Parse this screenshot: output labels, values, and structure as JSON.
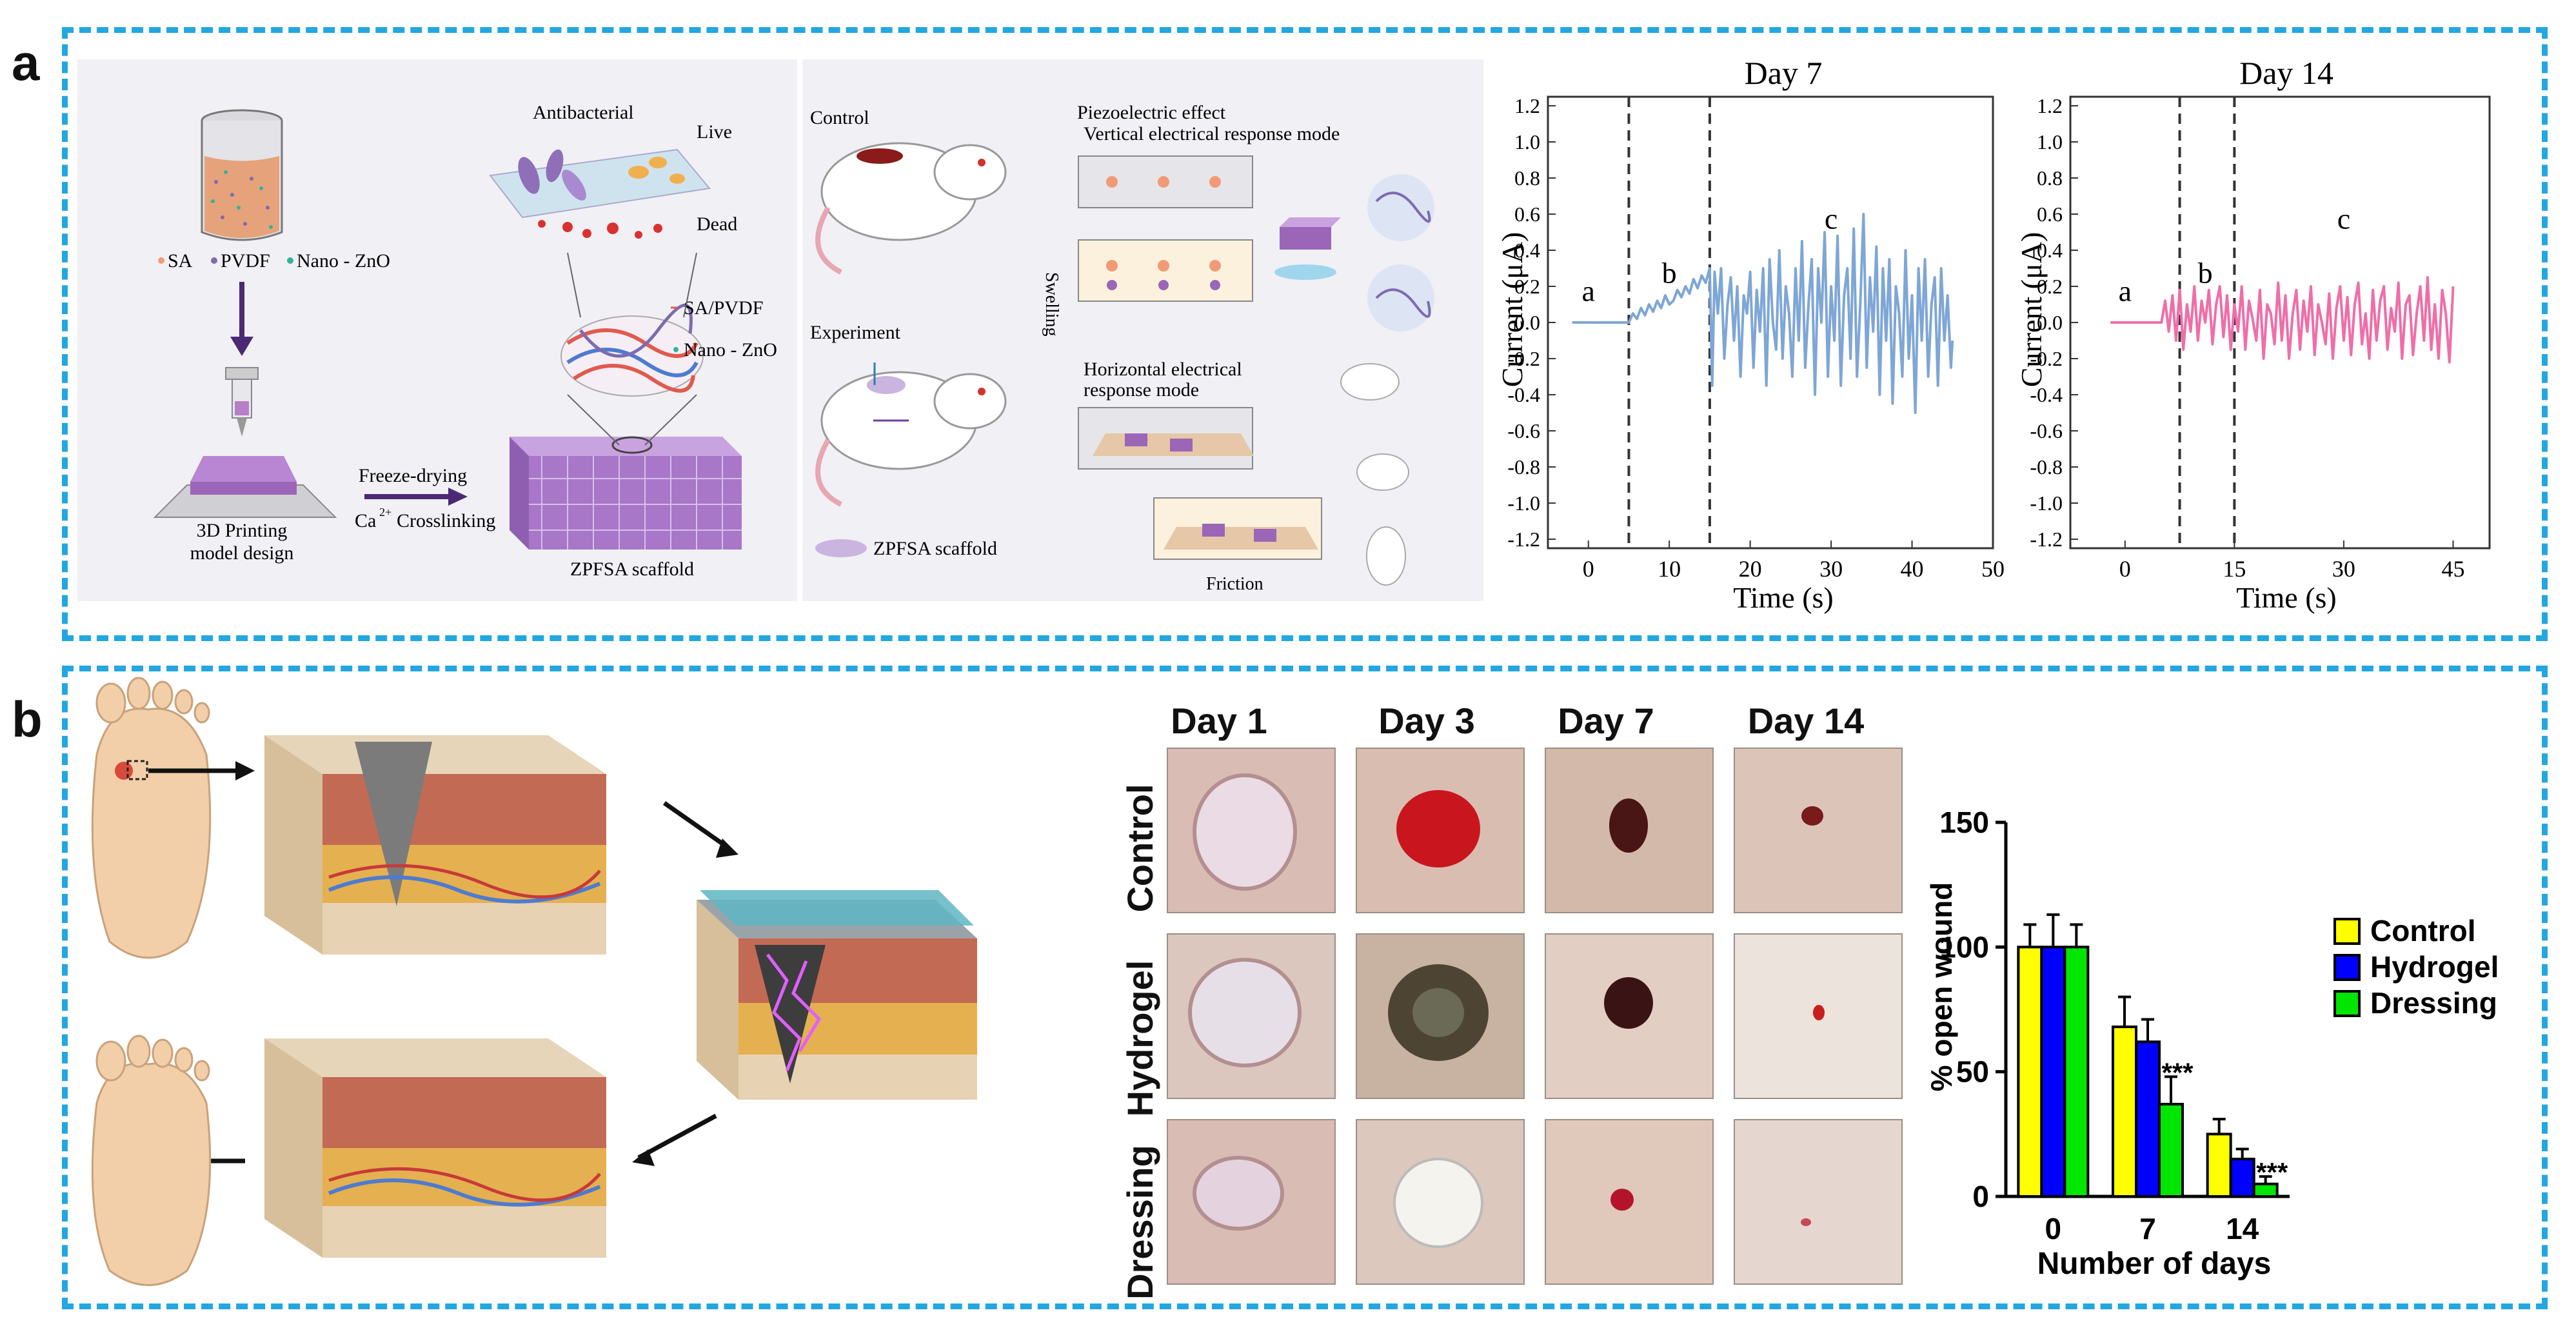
{
  "panel_a": {
    "letter": "a",
    "fabrication": {
      "sa": "SA",
      "pvdf": "PVDF",
      "zno": "Nano - ZnO",
      "printing": "3D Printing",
      "model_design": "model design",
      "freeze": "Freeze-drying",
      "ca": "Ca",
      "ca_sup": "2+",
      "crosslinking": "Crosslinking",
      "scaffold": "ZPFSA scaffold",
      "antibacterial": "Antibacterial",
      "live": "Live",
      "dead": "Dead",
      "sa_pvdf": "SA/PVDF",
      "zno_legend": "Nano - ZnO"
    },
    "mechanism": {
      "control": "Control",
      "experiment": "Experiment",
      "scaffold_label": "ZPFSA scaffold",
      "piezo": "Piezoelectric effect",
      "vertical": "Vertical electrical response mode",
      "swelling": "Swelling",
      "horizontal_1": "Horizontal electrical",
      "horizontal_2": "response mode",
      "friction": "Friction"
    },
    "colors": {
      "day7": "#7ea6d6",
      "day14": "#ef6ea8"
    }
  },
  "panel_b": {
    "letter": "b",
    "grid": {
      "columns": [
        "Day 1",
        "Day 3",
        "Day 7",
        "Day 14"
      ],
      "rows": [
        "Control",
        "Hydrogel",
        "Dressing"
      ]
    },
    "colors": {
      "control": "#ffff00",
      "hydrogel": "#0000ff",
      "dressing": "#00e600"
    }
  },
  "chart_data": [
    {
      "type": "line",
      "title": "Day 7",
      "xlabel": "Time (s)",
      "ylabel": "Current (μA)",
      "xlim": [
        -5,
        50
      ],
      "ylim": [
        -1.25,
        1.25
      ],
      "xticks": [
        0,
        10,
        20,
        30,
        40,
        50
      ],
      "yticks": [
        -1.2,
        -1.0,
        -0.8,
        -0.6,
        -0.4,
        -0.2,
        0.0,
        0.2,
        0.4,
        0.6,
        0.8,
        1.0,
        1.2
      ],
      "phase_lines": [
        5,
        15
      ],
      "phase_labels": [
        {
          "text": "a",
          "x": 0,
          "y": 0.12
        },
        {
          "text": "b",
          "x": 10,
          "y": 0.22
        },
        {
          "text": "c",
          "x": 30,
          "y": 0.52
        }
      ],
      "series": [
        {
          "name": "Day 7",
          "x": [
            -2,
            5,
            5.5,
            6,
            6.5,
            7,
            7.5,
            8,
            8.5,
            9,
            9.5,
            10,
            10.5,
            11,
            11.5,
            12,
            12.5,
            13,
            13.5,
            14,
            14.5,
            15,
            15.3,
            15.6,
            16,
            16.4,
            16.8,
            17.2,
            17.6,
            18,
            18.4,
            18.8,
            19.2,
            19.6,
            20,
            20.4,
            20.8,
            21.2,
            21.6,
            22,
            22.4,
            22.8,
            23.2,
            23.6,
            24,
            24.4,
            24.8,
            25.2,
            25.6,
            26,
            26.4,
            26.8,
            27.2,
            27.6,
            28,
            28.4,
            28.8,
            29.2,
            29.6,
            30,
            30.4,
            30.8,
            31.2,
            31.6,
            32,
            32.4,
            32.8,
            33.2,
            33.6,
            34,
            34.4,
            34.8,
            35.2,
            35.6,
            36,
            36.4,
            36.8,
            37.2,
            37.6,
            38,
            38.4,
            38.8,
            39.2,
            39.6,
            40,
            40.4,
            40.8,
            41.2,
            41.6,
            42,
            42.4,
            42.8,
            43.2,
            43.6,
            44,
            44.4,
            44.8,
            45
          ],
          "y": [
            0.0,
            0.0,
            0.05,
            0.02,
            0.08,
            0.04,
            0.1,
            0.06,
            0.12,
            0.08,
            0.15,
            0.1,
            0.12,
            0.18,
            0.14,
            0.2,
            0.16,
            0.24,
            0.19,
            0.26,
            0.22,
            0.3,
            -0.35,
            0.28,
            0.05,
            0.3,
            -0.2,
            0.1,
            0.25,
            -0.1,
            0.2,
            -0.3,
            0.15,
            0.05,
            0.28,
            -0.25,
            0.18,
            -0.05,
            0.3,
            -0.35,
            0.35,
            0.0,
            -0.15,
            0.4,
            -0.2,
            0.2,
            0.05,
            -0.3,
            0.3,
            -0.1,
            0.45,
            -0.25,
            0.1,
            0.35,
            -0.4,
            0.3,
            0.0,
            0.5,
            -0.3,
            0.2,
            -0.1,
            0.48,
            -0.35,
            0.15,
            0.3,
            -0.2,
            0.52,
            -0.3,
            0.1,
            0.6,
            -0.25,
            0.25,
            -0.05,
            0.42,
            -0.4,
            0.3,
            -0.1,
            0.35,
            -0.45,
            0.2,
            0.05,
            -0.3,
            0.4,
            -0.2,
            0.15,
            -0.5,
            0.3,
            -0.1,
            0.35,
            -0.3,
            0.1,
            0.25,
            -0.35,
            0.3,
            -0.1,
            0.15,
            -0.25,
            -0.1
          ]
        }
      ]
    },
    {
      "type": "line",
      "title": "Day 14",
      "xlabel": "Time (s)",
      "ylabel": "Current (μA)",
      "xlim": [
        -7.5,
        50
      ],
      "ylim": [
        -1.25,
        1.25
      ],
      "xticks": [
        0,
        15,
        30,
        45
      ],
      "yticks": [
        -1.2,
        -1.0,
        -0.8,
        -0.6,
        -0.4,
        -0.2,
        0.0,
        0.2,
        0.4,
        0.6,
        0.8,
        1.0,
        1.2
      ],
      "phase_lines": [
        7.5,
        15
      ],
      "phase_labels": [
        {
          "text": "a",
          "x": 0,
          "y": 0.12
        },
        {
          "text": "b",
          "x": 11,
          "y": 0.22
        },
        {
          "text": "c",
          "x": 30,
          "y": 0.52
        }
      ],
      "series": [
        {
          "name": "Day 14",
          "x": [
            -2,
            5,
            5.5,
            6,
            6.5,
            7,
            7.5,
            8,
            8.5,
            9,
            9.5,
            10,
            10.5,
            11,
            11.5,
            12,
            12.5,
            13,
            13.5,
            14,
            14.5,
            15,
            15.5,
            16,
            16.5,
            17,
            17.5,
            18,
            18.5,
            19,
            19.5,
            20,
            20.5,
            21,
            21.5,
            22,
            22.5,
            23,
            23.5,
            24,
            24.5,
            25,
            25.5,
            26,
            26.5,
            27,
            27.5,
            28,
            28.5,
            29,
            29.5,
            30,
            30.5,
            31,
            31.5,
            32,
            32.5,
            33,
            33.5,
            34,
            34.5,
            35,
            35.5,
            36,
            36.5,
            37,
            37.5,
            38,
            38.5,
            39,
            39.5,
            40,
            40.5,
            41,
            41.5,
            42,
            42.5,
            43,
            43.5,
            44,
            44.5,
            45
          ],
          "y": [
            0.0,
            0.0,
            0.12,
            -0.05,
            0.15,
            -0.1,
            0.18,
            -0.15,
            0.1,
            -0.05,
            0.2,
            -0.1,
            0.12,
            0.0,
            0.18,
            -0.12,
            0.1,
            0.2,
            -0.08,
            0.15,
            -0.15,
            0.1,
            -0.05,
            0.2,
            -0.15,
            0.12,
            0.02,
            -0.1,
            0.18,
            -0.2,
            0.1,
            0.05,
            -0.12,
            0.22,
            -0.1,
            0.15,
            -0.2,
            0.05,
            0.18,
            -0.15,
            0.12,
            -0.05,
            0.2,
            -0.18,
            0.1,
            0.0,
            -0.12,
            0.16,
            -0.2,
            0.08,
            0.2,
            -0.1,
            0.14,
            -0.18,
            0.1,
            0.22,
            -0.12,
            0.05,
            -0.2,
            0.18,
            -0.1,
            0.12,
            0.2,
            -0.15,
            0.08,
            -0.05,
            0.22,
            -0.2,
            0.1,
            0.15,
            -0.18,
            0.05,
            0.2,
            -0.1,
            0.25,
            -0.15,
            0.1,
            -0.2,
            0.18,
            0.05,
            -0.22,
            0.2
          ]
        }
      ]
    },
    {
      "type": "bar",
      "title": "",
      "xlabel": "Number of days",
      "ylabel": "% open wound",
      "categories": [
        "0",
        "7",
        "14"
      ],
      "ylim": [
        0,
        150
      ],
      "yticks": [
        0,
        50,
        100,
        150
      ],
      "legend": "right",
      "series": [
        {
          "name": "Control",
          "values": [
            100,
            68,
            25
          ],
          "errors": [
            9,
            12,
            6
          ]
        },
        {
          "name": "Hydrogel",
          "values": [
            100,
            62,
            15
          ],
          "errors": [
            13,
            9,
            4
          ]
        },
        {
          "name": "Dressing",
          "values": [
            100,
            37,
            5
          ],
          "errors": [
            9,
            11,
            3
          ]
        }
      ],
      "annotations": [
        {
          "text": "***",
          "category": "7",
          "series": "Dressing"
        },
        {
          "text": "***",
          "category": "14",
          "series": "Dressing"
        }
      ]
    }
  ]
}
